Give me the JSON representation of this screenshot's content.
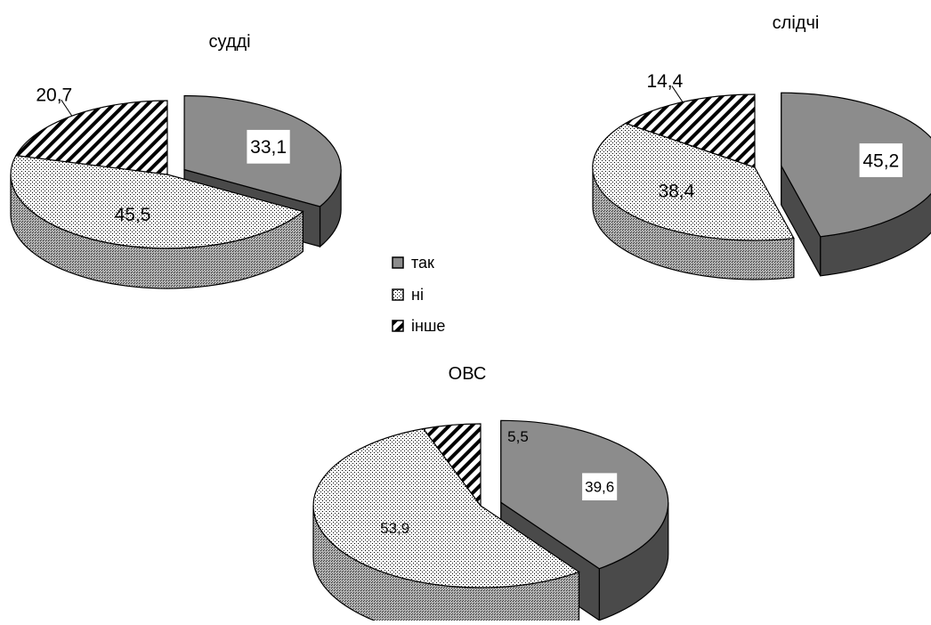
{
  "legend": {
    "items": [
      {
        "label": "так",
        "fill": "#8c8c8c"
      },
      {
        "label": "ні",
        "fill": "dots"
      },
      {
        "label": "інше",
        "fill": "hatch"
      }
    ]
  },
  "colors": {
    "background": "#ffffff",
    "tak": "#8c8c8c",
    "tak_side": "#4a4a4a",
    "ni_side": "#8a8a8a",
    "ink": "#000000"
  },
  "chart_data": [
    {
      "type": "pie",
      "title": "судді",
      "categories": [
        "так",
        "ні",
        "інше"
      ],
      "values": [
        33.1,
        45.5,
        20.7
      ],
      "labels": [
        "33,1",
        "45,5",
        "20,7"
      ],
      "exploded": "так"
    },
    {
      "type": "pie",
      "title": "слідчі",
      "categories": [
        "так",
        "ні",
        "інше"
      ],
      "values": [
        45.2,
        38.4,
        14.4
      ],
      "labels": [
        "45,2",
        "38,4",
        "14,4"
      ],
      "exploded": "так"
    },
    {
      "type": "pie",
      "title": "ОВС",
      "categories": [
        "так",
        "ні",
        "інше"
      ],
      "values": [
        39.6,
        53.9,
        5.5
      ],
      "labels": [
        "39,6",
        "53,9",
        "5,5"
      ],
      "exploded": "так"
    }
  ]
}
